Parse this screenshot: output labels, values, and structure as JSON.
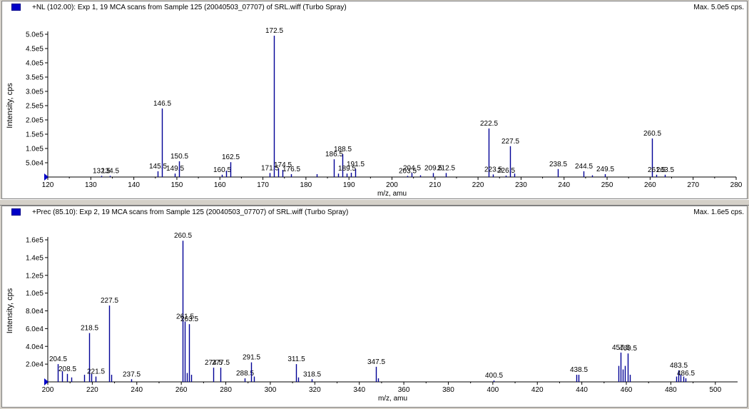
{
  "panes": [
    {
      "title": "+NL (102.00): Exp 1, 19 MCA scans from Sample 125 (20040503_07707) of SRL.wiff (Turbo Spray)",
      "max_label": "Max. 5.0e5 cps.",
      "legend_color": "#0000c8"
    },
    {
      "title": "+Prec (85.10): Exp 2, 19 MCA scans from Sample 125 (20040503_07707) of SRL.wiff (Turbo Spray)",
      "max_label": "Max. 1.6e5 cps.",
      "legend_color": "#0000c8"
    }
  ],
  "chart_data": [
    {
      "type": "bar",
      "xlabel": "m/z, amu",
      "ylabel": "Intensity, cps",
      "xlim": [
        120,
        280
      ],
      "ylim": [
        0,
        500000
      ],
      "xticks": [
        "120",
        "130",
        "140",
        "150",
        "160",
        "170",
        "180",
        "190",
        "200",
        "210",
        "220",
        "230",
        "240",
        "250",
        "260",
        "270",
        "280"
      ],
      "yticks": [
        "5.0e4",
        "1.0e5",
        "1.5e5",
        "2.0e5",
        "2.5e5",
        "3.0e5",
        "3.5e5",
        "4.0e5",
        "4.5e5",
        "5.0e5"
      ],
      "color": "#000096",
      "peaks": [
        {
          "x": 132.5,
          "y": 4000,
          "label": "132.5"
        },
        {
          "x": 134.5,
          "y": 4000,
          "label": "134.5"
        },
        {
          "x": 145.5,
          "y": 20000,
          "label": "145.5"
        },
        {
          "x": 146.5,
          "y": 240000,
          "label": "146.5"
        },
        {
          "x": 149.5,
          "y": 12000,
          "label": "149.5"
        },
        {
          "x": 150.5,
          "y": 55000,
          "label": "150.5"
        },
        {
          "x": 160.5,
          "y": 8000,
          "label": "160.5"
        },
        {
          "x": 161.5,
          "y": 22000,
          "label": ""
        },
        {
          "x": 162.5,
          "y": 52000,
          "label": "162.5"
        },
        {
          "x": 171.5,
          "y": 14000,
          "label": "171.5"
        },
        {
          "x": 172.5,
          "y": 495000,
          "label": "172.5"
        },
        {
          "x": 173.5,
          "y": 30000,
          "label": ""
        },
        {
          "x": 174.5,
          "y": 25000,
          "label": "174.5"
        },
        {
          "x": 176.5,
          "y": 10000,
          "label": "176.5"
        },
        {
          "x": 182.5,
          "y": 10000,
          "label": ""
        },
        {
          "x": 186.5,
          "y": 62000,
          "label": "186.5"
        },
        {
          "x": 187.5,
          "y": 12000,
          "label": ""
        },
        {
          "x": 188.5,
          "y": 80000,
          "label": "188.5"
        },
        {
          "x": 189.5,
          "y": 12000,
          "label": "189.5"
        },
        {
          "x": 190.5,
          "y": 15000,
          "label": ""
        },
        {
          "x": 191.5,
          "y": 28000,
          "label": "191.5"
        },
        {
          "x": 203.5,
          "y": 4000,
          "label": "203.5"
        },
        {
          "x": 204.5,
          "y": 14000,
          "label": "204.5"
        },
        {
          "x": 206.5,
          "y": 6000,
          "label": ""
        },
        {
          "x": 209.5,
          "y": 14000,
          "label": "209.5"
        },
        {
          "x": 212.5,
          "y": 14000,
          "label": "212.5"
        },
        {
          "x": 222.5,
          "y": 170000,
          "label": "222.5"
        },
        {
          "x": 223.5,
          "y": 9000,
          "label": "223.5"
        },
        {
          "x": 226.5,
          "y": 5000,
          "label": "226.5"
        },
        {
          "x": 227.5,
          "y": 108000,
          "label": "227.5"
        },
        {
          "x": 228.5,
          "y": 12000,
          "label": ""
        },
        {
          "x": 238.5,
          "y": 28000,
          "label": "238.5"
        },
        {
          "x": 244.5,
          "y": 20000,
          "label": "244.5"
        },
        {
          "x": 246.5,
          "y": 6000,
          "label": ""
        },
        {
          "x": 249.5,
          "y": 10000,
          "label": "249.5"
        },
        {
          "x": 260.5,
          "y": 135000,
          "label": "260.5"
        },
        {
          "x": 261.5,
          "y": 8000,
          "label": "261.5"
        },
        {
          "x": 263.5,
          "y": 8000,
          "label": "263.5"
        }
      ]
    },
    {
      "type": "bar",
      "xlabel": "m/z, amu",
      "ylabel": "Intensity, cps",
      "xlim": [
        200,
        510
      ],
      "ylim": [
        0,
        160000
      ],
      "xticks": [
        "200",
        "220",
        "240",
        "260",
        "280",
        "300",
        "320",
        "340",
        "360",
        "380",
        "400",
        "420",
        "440",
        "460",
        "480",
        "500"
      ],
      "yticks": [
        "2.0e4",
        "4.0e4",
        "6.0e4",
        "8.0e4",
        "1.0e5",
        "1.2e5",
        "1.4e5",
        "1.6e5"
      ],
      "color": "#000096",
      "peaks": [
        {
          "x": 204.5,
          "y": 20000,
          "label": "204.5"
        },
        {
          "x": 206.5,
          "y": 12000,
          "label": ""
        },
        {
          "x": 208.5,
          "y": 9000,
          "label": "208.5"
        },
        {
          "x": 210.5,
          "y": 5000,
          "label": ""
        },
        {
          "x": 216.5,
          "y": 8000,
          "label": ""
        },
        {
          "x": 218.5,
          "y": 55000,
          "label": "218.5"
        },
        {
          "x": 219.5,
          "y": 9000,
          "label": ""
        },
        {
          "x": 221.5,
          "y": 6000,
          "label": "221.5"
        },
        {
          "x": 227.5,
          "y": 86000,
          "label": "227.5"
        },
        {
          "x": 228.5,
          "y": 8000,
          "label": ""
        },
        {
          "x": 237.5,
          "y": 3000,
          "label": "237.5"
        },
        {
          "x": 260.5,
          "y": 159000,
          "label": "260.5"
        },
        {
          "x": 261.5,
          "y": 68000,
          "label": "261.5"
        },
        {
          "x": 262.5,
          "y": 10000,
          "label": ""
        },
        {
          "x": 263.5,
          "y": 65000,
          "label": "263.5"
        },
        {
          "x": 264.5,
          "y": 8000,
          "label": ""
        },
        {
          "x": 274.5,
          "y": 16000,
          "label": "274.5"
        },
        {
          "x": 277.5,
          "y": 16000,
          "label": "277.5"
        },
        {
          "x": 288.5,
          "y": 4000,
          "label": "288.5"
        },
        {
          "x": 291.5,
          "y": 22000,
          "label": "291.5"
        },
        {
          "x": 292.5,
          "y": 6000,
          "label": ""
        },
        {
          "x": 311.5,
          "y": 20000,
          "label": "311.5"
        },
        {
          "x": 312.5,
          "y": 5000,
          "label": ""
        },
        {
          "x": 318.5,
          "y": 3000,
          "label": "318.5"
        },
        {
          "x": 347.5,
          "y": 17000,
          "label": "347.5"
        },
        {
          "x": 348.5,
          "y": 4000,
          "label": ""
        },
        {
          "x": 400.5,
          "y": 1500,
          "label": "400.5"
        },
        {
          "x": 437.5,
          "y": 8000,
          "label": ""
        },
        {
          "x": 438.5,
          "y": 8000,
          "label": "438.5"
        },
        {
          "x": 456.5,
          "y": 18000,
          "label": ""
        },
        {
          "x": 457.5,
          "y": 33000,
          "label": "457.5"
        },
        {
          "x": 458.5,
          "y": 14000,
          "label": ""
        },
        {
          "x": 459.5,
          "y": 18000,
          "label": ""
        },
        {
          "x": 460.5,
          "y": 32000,
          "label": "460.5"
        },
        {
          "x": 461.5,
          "y": 8000,
          "label": ""
        },
        {
          "x": 482.5,
          "y": 6000,
          "label": ""
        },
        {
          "x": 483.5,
          "y": 13000,
          "label": "483.5"
        },
        {
          "x": 484.5,
          "y": 8000,
          "label": ""
        },
        {
          "x": 485.5,
          "y": 6000,
          "label": ""
        },
        {
          "x": 486.5,
          "y": 4000,
          "label": "486.5"
        }
      ]
    }
  ]
}
